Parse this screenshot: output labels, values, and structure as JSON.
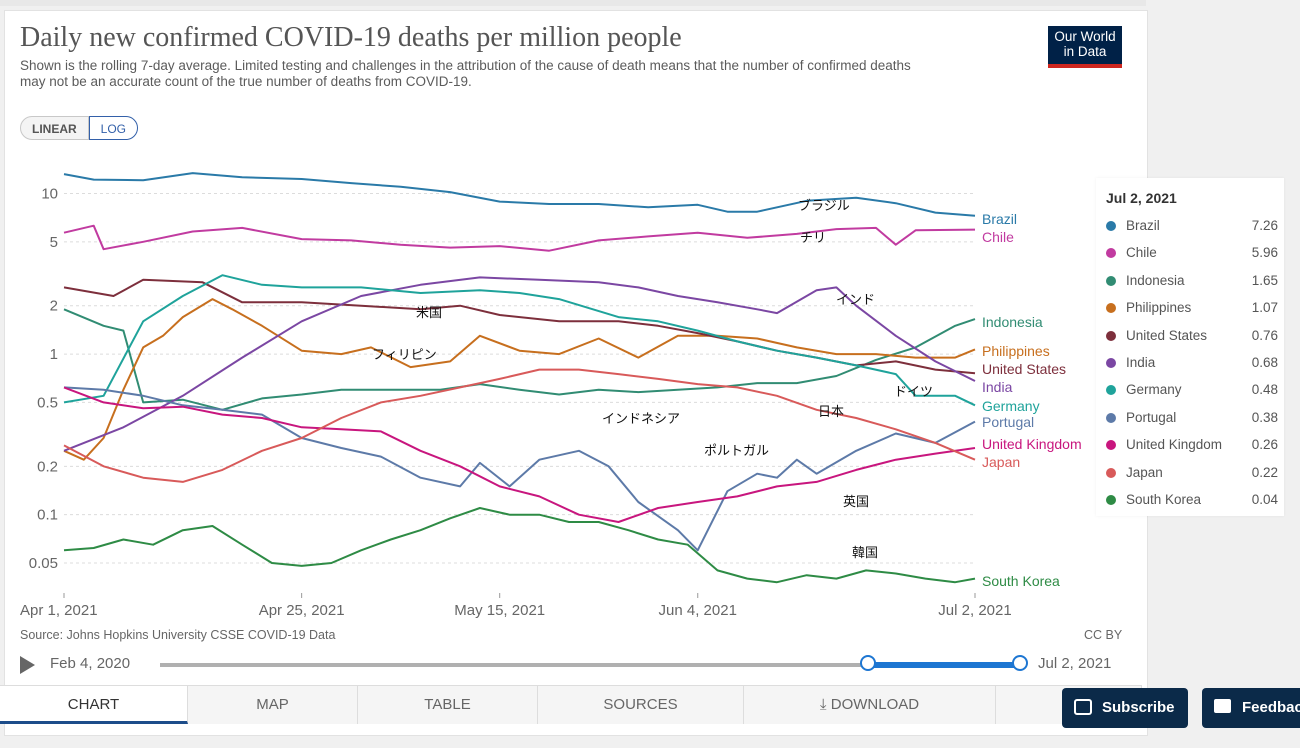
{
  "title": "Daily new confirmed COVID-19 deaths per million people",
  "subtitle": "Shown is the rolling 7-day average. Limited testing and challenges in the attribution of the cause of death means that the number of confirmed deaths may not be an accurate count of the true number of deaths from COVID-19.",
  "logo": {
    "line1": "Our World",
    "line2": "in Data"
  },
  "scale_buttons": {
    "linear": "LINEAR",
    "log": "LOG"
  },
  "source": "Source: Johns Hopkins University CSSE COVID-19 Data",
  "license": "CC BY",
  "timeline": {
    "start": "Feb 4, 2020",
    "end": "Jul 2, 2021"
  },
  "tabs": [
    "CHART",
    "MAP",
    "TABLE",
    "SOURCES",
    "DOWNLOAD"
  ],
  "buttons": {
    "subscribe": "Subscribe",
    "feedback": "Feedback"
  },
  "legend": {
    "date": "Jul 2, 2021",
    "rows": [
      {
        "name": "Brazil",
        "value": "7.26",
        "color": "#2a7aa8"
      },
      {
        "name": "Chile",
        "value": "5.96",
        "color": "#c13ba0"
      },
      {
        "name": "Indonesia",
        "value": "1.65",
        "color": "#318c73"
      },
      {
        "name": "Philippines",
        "value": "1.07",
        "color": "#c76f1e"
      },
      {
        "name": "United States",
        "value": "0.76",
        "color": "#7d2f3c"
      },
      {
        "name": "India",
        "value": "0.68",
        "color": "#7b47a3"
      },
      {
        "name": "Germany",
        "value": "0.48",
        "color": "#1fa39b"
      },
      {
        "name": "Portugal",
        "value": "0.38",
        "color": "#5d7aa8"
      },
      {
        "name": "United Kingdom",
        "value": "0.26",
        "color": "#c8167e"
      },
      {
        "name": "Japan",
        "value": "0.22",
        "color": "#d85a5a"
      },
      {
        "name": "South Korea",
        "value": "0.04",
        "color": "#2e8b45"
      }
    ]
  },
  "chart_data": {
    "type": "line",
    "title": "Daily new confirmed COVID-19 deaths per million people",
    "y_scale": "log",
    "ylim": [
      0.033,
      14
    ],
    "yticks": [
      {
        "v": 10,
        "label": "10"
      },
      {
        "v": 5,
        "label": "5"
      },
      {
        "v": 2,
        "label": "2"
      },
      {
        "v": 1,
        "label": "1"
      },
      {
        "v": 0.5,
        "label": "0.5"
      },
      {
        "v": 0.2,
        "label": "0.2"
      },
      {
        "v": 0.1,
        "label": "0.1"
      },
      {
        "v": 0.05,
        "label": "0.05"
      }
    ],
    "x_start": "Apr 1, 2021",
    "x_end": "Jul 2, 2021",
    "xticks": [
      {
        "day": 0,
        "label": "Apr 1, 2021"
      },
      {
        "day": 24,
        "label": "Apr 25, 2021"
      },
      {
        "day": 44,
        "label": "May 15, 2021"
      },
      {
        "day": 64,
        "label": "Jun 4, 2021"
      },
      {
        "day": 92,
        "label": "Jul 2, 2021"
      }
    ],
    "grid": true,
    "series": [
      {
        "name": "Brazil",
        "label_ja": "ブラジル",
        "color": "#2a7aa8",
        "points": [
          [
            0,
            13.2
          ],
          [
            3,
            12.2
          ],
          [
            8,
            12.1
          ],
          [
            13,
            13.4
          ],
          [
            18,
            12.6
          ],
          [
            24,
            12.3
          ],
          [
            29,
            11.6
          ],
          [
            34,
            11.0
          ],
          [
            39,
            10.2
          ],
          [
            44,
            8.9
          ],
          [
            49,
            8.6
          ],
          [
            54,
            8.6
          ],
          [
            59,
            8.2
          ],
          [
            64,
            8.5
          ],
          [
            67,
            7.7
          ],
          [
            70,
            7.7
          ],
          [
            75,
            9.0
          ],
          [
            80,
            9.4
          ],
          [
            84,
            8.7
          ],
          [
            88,
            7.6
          ],
          [
            92,
            7.26
          ]
        ]
      },
      {
        "name": "Chile",
        "label_ja": "チリ",
        "color": "#c13ba0",
        "points": [
          [
            0,
            5.7
          ],
          [
            3,
            6.3
          ],
          [
            4,
            4.5
          ],
          [
            8,
            5.0
          ],
          [
            13,
            5.8
          ],
          [
            18,
            6.1
          ],
          [
            24,
            5.2
          ],
          [
            29,
            5.1
          ],
          [
            34,
            4.8
          ],
          [
            39,
            4.6
          ],
          [
            44,
            4.7
          ],
          [
            49,
            4.4
          ],
          [
            54,
            5.1
          ],
          [
            59,
            5.4
          ],
          [
            64,
            5.7
          ],
          [
            69,
            5.3
          ],
          [
            74,
            5.6
          ],
          [
            78,
            6.0
          ],
          [
            82,
            6.1
          ],
          [
            84,
            4.8
          ],
          [
            86,
            5.9
          ],
          [
            92,
            5.96
          ]
        ]
      },
      {
        "name": "Indonesia",
        "label_ja": "インドネシア",
        "color": "#318c73",
        "points": [
          [
            0,
            1.9
          ],
          [
            4,
            1.5
          ],
          [
            6,
            1.4
          ],
          [
            8,
            0.5
          ],
          [
            12,
            0.52
          ],
          [
            16,
            0.45
          ],
          [
            20,
            0.53
          ],
          [
            24,
            0.56
          ],
          [
            28,
            0.6
          ],
          [
            34,
            0.6
          ],
          [
            38,
            0.6
          ],
          [
            42,
            0.65
          ],
          [
            46,
            0.6
          ],
          [
            50,
            0.56
          ],
          [
            54,
            0.6
          ],
          [
            58,
            0.58
          ],
          [
            62,
            0.6
          ],
          [
            66,
            0.62
          ],
          [
            70,
            0.66
          ],
          [
            74,
            0.66
          ],
          [
            78,
            0.73
          ],
          [
            82,
            0.92
          ],
          [
            86,
            1.1
          ],
          [
            90,
            1.5
          ],
          [
            92,
            1.65
          ]
        ]
      },
      {
        "name": "Philippines",
        "label_ja": "フィリピン",
        "color": "#c76f1e",
        "points": [
          [
            0,
            0.25
          ],
          [
            2,
            0.22
          ],
          [
            4,
            0.3
          ],
          [
            6,
            0.6
          ],
          [
            8,
            1.1
          ],
          [
            10,
            1.3
          ],
          [
            12,
            1.7
          ],
          [
            15,
            2.2
          ],
          [
            17,
            1.9
          ],
          [
            20,
            1.5
          ],
          [
            24,
            1.05
          ],
          [
            28,
            1.0
          ],
          [
            31,
            1.1
          ],
          [
            35,
            0.83
          ],
          [
            39,
            0.9
          ],
          [
            42,
            1.3
          ],
          [
            46,
            1.05
          ],
          [
            50,
            1.0
          ],
          [
            54,
            1.25
          ],
          [
            58,
            0.95
          ],
          [
            62,
            1.3
          ],
          [
            66,
            1.3
          ],
          [
            70,
            1.25
          ],
          [
            74,
            1.1
          ],
          [
            78,
            1.0
          ],
          [
            82,
            1.0
          ],
          [
            86,
            0.95
          ],
          [
            90,
            0.95
          ],
          [
            92,
            1.07
          ]
        ]
      },
      {
        "name": "United States",
        "label_ja": "米国",
        "color": "#7d2f3c",
        "points": [
          [
            0,
            2.6
          ],
          [
            5,
            2.3
          ],
          [
            8,
            2.9
          ],
          [
            14,
            2.8
          ],
          [
            18,
            2.1
          ],
          [
            24,
            2.1
          ],
          [
            30,
            2.0
          ],
          [
            36,
            1.9
          ],
          [
            40,
            2.0
          ],
          [
            44,
            1.75
          ],
          [
            50,
            1.6
          ],
          [
            56,
            1.6
          ],
          [
            60,
            1.5
          ],
          [
            64,
            1.35
          ],
          [
            68,
            1.2
          ],
          [
            72,
            1.05
          ],
          [
            76,
            0.95
          ],
          [
            80,
            0.85
          ],
          [
            84,
            0.9
          ],
          [
            88,
            0.8
          ],
          [
            92,
            0.76
          ]
        ]
      },
      {
        "name": "India",
        "label_ja": "インド",
        "color": "#7b47a3",
        "points": [
          [
            0,
            0.25
          ],
          [
            6,
            0.35
          ],
          [
            12,
            0.55
          ],
          [
            18,
            0.95
          ],
          [
            24,
            1.6
          ],
          [
            30,
            2.3
          ],
          [
            36,
            2.7
          ],
          [
            42,
            3.0
          ],
          [
            48,
            2.9
          ],
          [
            54,
            2.8
          ],
          [
            58,
            2.6
          ],
          [
            62,
            2.3
          ],
          [
            66,
            2.1
          ],
          [
            70,
            1.9
          ],
          [
            72,
            1.8
          ],
          [
            76,
            2.5
          ],
          [
            78,
            2.6
          ],
          [
            80,
            2.0
          ],
          [
            84,
            1.3
          ],
          [
            88,
            0.9
          ],
          [
            92,
            0.68
          ]
        ]
      },
      {
        "name": "Germany",
        "label_ja": "ドイツ",
        "color": "#1fa39b",
        "points": [
          [
            0,
            0.5
          ],
          [
            4,
            0.55
          ],
          [
            8,
            1.6
          ],
          [
            12,
            2.3
          ],
          [
            16,
            3.1
          ],
          [
            20,
            2.7
          ],
          [
            24,
            2.6
          ],
          [
            30,
            2.6
          ],
          [
            36,
            2.4
          ],
          [
            42,
            2.5
          ],
          [
            46,
            2.4
          ],
          [
            50,
            2.2
          ],
          [
            56,
            1.7
          ],
          [
            60,
            1.6
          ],
          [
            64,
            1.4
          ],
          [
            68,
            1.2
          ],
          [
            72,
            1.05
          ],
          [
            76,
            0.95
          ],
          [
            80,
            0.85
          ],
          [
            84,
            0.75
          ],
          [
            86,
            0.55
          ],
          [
            90,
            0.55
          ],
          [
            92,
            0.48
          ]
        ]
      },
      {
        "name": "Portugal",
        "label_ja": "ポルトガル",
        "color": "#5d7aa8",
        "points": [
          [
            0,
            0.62
          ],
          [
            4,
            0.6
          ],
          [
            8,
            0.55
          ],
          [
            12,
            0.48
          ],
          [
            16,
            0.45
          ],
          [
            20,
            0.42
          ],
          [
            24,
            0.3
          ],
          [
            28,
            0.26
          ],
          [
            32,
            0.23
          ],
          [
            36,
            0.17
          ],
          [
            40,
            0.15
          ],
          [
            42,
            0.21
          ],
          [
            45,
            0.15
          ],
          [
            48,
            0.22
          ],
          [
            52,
            0.25
          ],
          [
            55,
            0.2
          ],
          [
            58,
            0.12
          ],
          [
            62,
            0.08
          ],
          [
            64,
            0.06
          ],
          [
            67,
            0.14
          ],
          [
            70,
            0.18
          ],
          [
            72,
            0.17
          ],
          [
            74,
            0.22
          ],
          [
            76,
            0.18
          ],
          [
            80,
            0.25
          ],
          [
            84,
            0.32
          ],
          [
            88,
            0.28
          ],
          [
            92,
            0.38
          ]
        ]
      },
      {
        "name": "United Kingdom",
        "label_ja": "英国",
        "color": "#c8167e",
        "points": [
          [
            0,
            0.62
          ],
          [
            4,
            0.5
          ],
          [
            8,
            0.46
          ],
          [
            12,
            0.47
          ],
          [
            16,
            0.42
          ],
          [
            20,
            0.4
          ],
          [
            24,
            0.35
          ],
          [
            28,
            0.34
          ],
          [
            32,
            0.33
          ],
          [
            36,
            0.25
          ],
          [
            40,
            0.2
          ],
          [
            44,
            0.15
          ],
          [
            48,
            0.13
          ],
          [
            52,
            0.1
          ],
          [
            56,
            0.09
          ],
          [
            60,
            0.11
          ],
          [
            64,
            0.12
          ],
          [
            68,
            0.13
          ],
          [
            72,
            0.15
          ],
          [
            76,
            0.16
          ],
          [
            80,
            0.19
          ],
          [
            84,
            0.22
          ],
          [
            88,
            0.24
          ],
          [
            92,
            0.26
          ]
        ]
      },
      {
        "name": "Japan",
        "label_ja": "日本",
        "color": "#d85a5a",
        "points": [
          [
            0,
            0.27
          ],
          [
            4,
            0.2
          ],
          [
            8,
            0.17
          ],
          [
            12,
            0.16
          ],
          [
            16,
            0.19
          ],
          [
            20,
            0.25
          ],
          [
            24,
            0.3
          ],
          [
            28,
            0.4
          ],
          [
            32,
            0.5
          ],
          [
            36,
            0.55
          ],
          [
            40,
            0.62
          ],
          [
            44,
            0.7
          ],
          [
            48,
            0.8
          ],
          [
            52,
            0.8
          ],
          [
            56,
            0.75
          ],
          [
            60,
            0.7
          ],
          [
            64,
            0.65
          ],
          [
            68,
            0.62
          ],
          [
            72,
            0.55
          ],
          [
            76,
            0.45
          ],
          [
            80,
            0.4
          ],
          [
            84,
            0.34
          ],
          [
            88,
            0.28
          ],
          [
            92,
            0.22
          ]
        ]
      },
      {
        "name": "South Korea",
        "label_ja": "韓国",
        "color": "#2e8b45",
        "points": [
          [
            0,
            0.06
          ],
          [
            3,
            0.062
          ],
          [
            6,
            0.07
          ],
          [
            9,
            0.065
          ],
          [
            12,
            0.08
          ],
          [
            15,
            0.085
          ],
          [
            18,
            0.065
          ],
          [
            21,
            0.05
          ],
          [
            24,
            0.048
          ],
          [
            27,
            0.05
          ],
          [
            30,
            0.06
          ],
          [
            33,
            0.07
          ],
          [
            36,
            0.08
          ],
          [
            39,
            0.095
          ],
          [
            42,
            0.11
          ],
          [
            45,
            0.1
          ],
          [
            48,
            0.1
          ],
          [
            51,
            0.09
          ],
          [
            54,
            0.09
          ],
          [
            57,
            0.08
          ],
          [
            60,
            0.07
          ],
          [
            63,
            0.065
          ],
          [
            66,
            0.045
          ],
          [
            69,
            0.04
          ],
          [
            72,
            0.038
          ],
          [
            75,
            0.042
          ],
          [
            78,
            0.04
          ],
          [
            81,
            0.045
          ],
          [
            84,
            0.043
          ],
          [
            87,
            0.04
          ],
          [
            90,
            0.038
          ],
          [
            92,
            0.04
          ]
        ]
      }
    ]
  }
}
